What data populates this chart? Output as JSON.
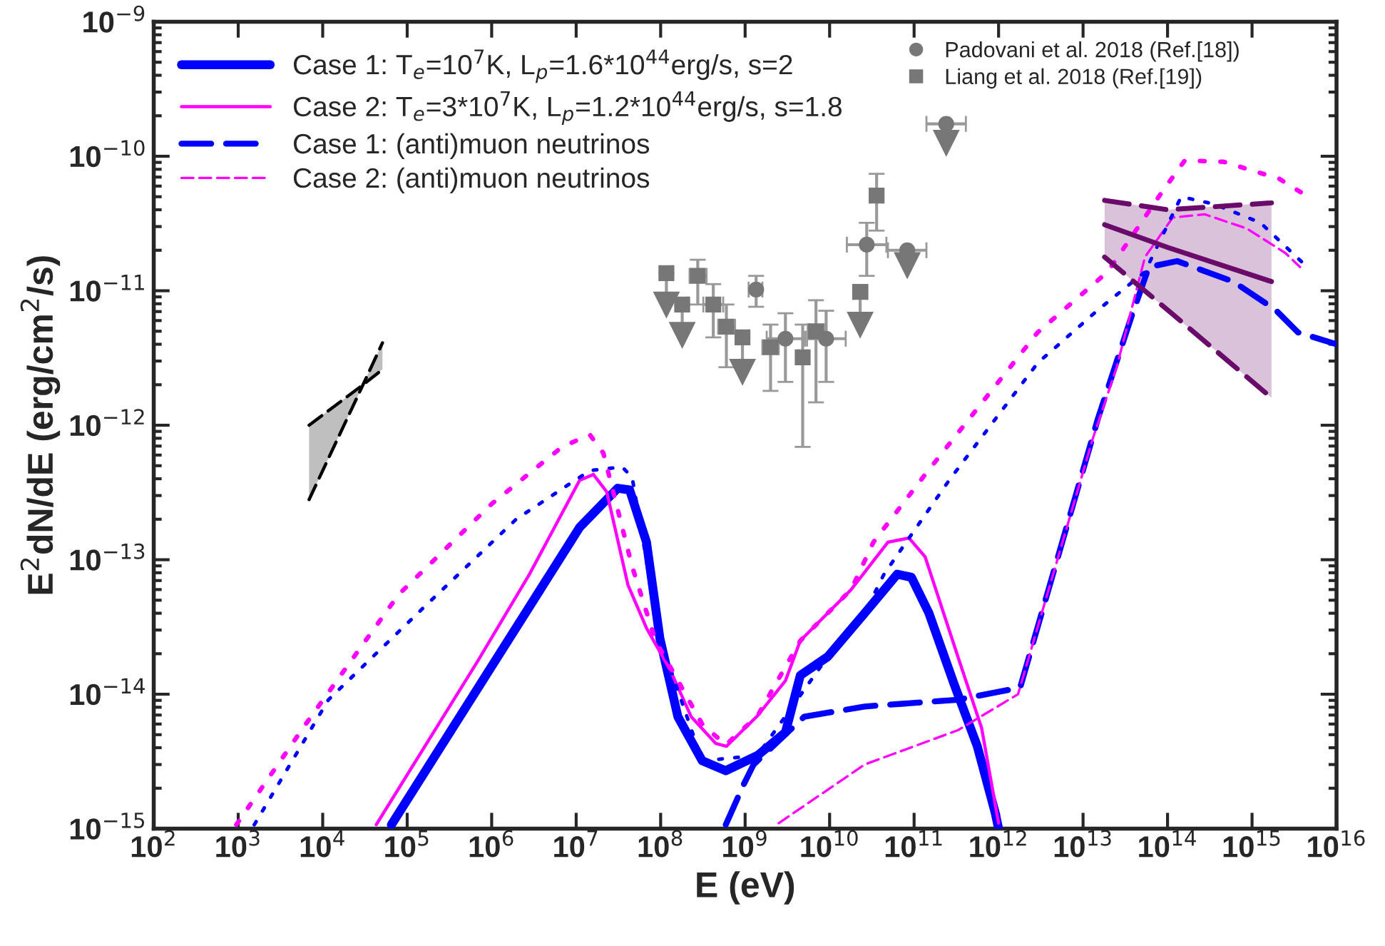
{
  "chart_data": {
    "type": "line",
    "xlabel": "E (eV)",
    "ylabel": "E$^{2}$dN/dE (erg/cm$^{2}$/s)",
    "log": "xy",
    "grid": false,
    "legend": "top left",
    "xlim": [
      100.0,
      1e+16
    ],
    "ylim": [
      1e-15,
      1e-09
    ],
    "xticks": [
      {
        "value": 100.0,
        "label": "10$^{2}$"
      },
      {
        "value": 1000.0,
        "label": "10$^{3}$"
      },
      {
        "value": 10000.0,
        "label": "10$^{4}$"
      },
      {
        "value": 100000.0,
        "label": "10$^{5}$"
      },
      {
        "value": 1000000.0,
        "label": "10$^{6}$"
      },
      {
        "value": 10000000.0,
        "label": "10$^{7}$"
      },
      {
        "value": 100000000.0,
        "label": "10$^{8}$"
      },
      {
        "value": 1000000000.0,
        "label": "10$^{9}$"
      },
      {
        "value": 10000000000.0,
        "label": "10$^{10}$"
      },
      {
        "value": 100000000000.0,
        "label": "10$^{11}$"
      },
      {
        "value": 1000000000000.0,
        "label": "10$^{12}$"
      },
      {
        "value": 10000000000000.0,
        "label": "10$^{13}$"
      },
      {
        "value": 100000000000000.0,
        "label": "10$^{14}$"
      },
      {
        "value": 1000000000000000.0,
        "label": "10$^{15}$"
      },
      {
        "value": 1e+16,
        "label": "10$^{16}$"
      }
    ],
    "yticks": [
      {
        "value": 1e-15,
        "label": "10$^{−15}$"
      },
      {
        "value": 1e-14,
        "label": "10$^{−14}$"
      },
      {
        "value": 1e-13,
        "label": "10$^{−13}$"
      },
      {
        "value": 1e-12,
        "label": "10$^{−12}$"
      },
      {
        "value": 1e-11,
        "label": "10$^{−11}$"
      },
      {
        "value": 1e-10,
        "label": "10$^{−10}$"
      },
      {
        "value": 1e-09,
        "label": "10$^{−9}$"
      }
    ],
    "series": [
      {
        "name": "Case 1: T$_{e}$=10$^{7}$K, L$_{p}$=1.6*10$^{44}$erg/s, s=2",
        "color": "#0000ff",
        "line_style": "solid",
        "marker": "none",
        "x": [
          65000.0,
          11000000.0,
          31000000.0,
          43000000.0,
          68000000.0,
          98000000.0,
          160000000.0,
          310000000.0,
          590000000.0,
          1400000000.0,
          3000000000.0,
          4500000000.0,
          9500000000.0,
          26000000000.0,
          63000000000.0,
          93000000000.0,
          150000000000.0,
          300000000000.0,
          560000000000.0,
          910000000000.0,
          1000000000000.0
        ],
        "values": [
          1.07e-15,
          1.74e-13,
          3.4e-13,
          3.3e-13,
          1.35e-13,
          2.6e-14,
          6.8e-15,
          3.2e-15,
          2.7e-15,
          3.5e-15,
          5.2e-15,
          1.38e-14,
          1.9e-14,
          4e-14,
          7.8e-14,
          7.4e-14,
          4e-14,
          1.17e-14,
          4.1e-15,
          1.32e-15,
          1e-15
        ]
      },
      {
        "name": "Case 2: T$_{e}$=3*10$^{7}$K, L$_{p}$=1.2*10$^{44}$erg/s, s=1.8",
        "color": "#ff00ff",
        "line_style": "solid",
        "marker": "none",
        "x": [
          43000.0,
          690000.0,
          2800000.0,
          11000000.0,
          16000000.0,
          23000000.0,
          41000000.0,
          68000000.0,
          130000000.0,
          230000000.0,
          450000000.0,
          600000000.0,
          1400000000.0,
          3000000000.0,
          4500000000.0,
          18000000000.0,
          49000000000.0,
          87000000000.0,
          135000000000.0,
          330000000000.0,
          630000000000.0,
          1000000000000.0
        ],
        "values": [
          1.07e-15,
          1.78e-14,
          7.8e-14,
          3.9e-13,
          4.3e-13,
          3.2e-13,
          6.5e-14,
          3.1e-14,
          1.51e-14,
          6.8e-15,
          4.3e-15,
          4.1e-15,
          6.9e-15,
          1.26e-14,
          2.5e-14,
          6e-14,
          1.35e-13,
          1.45e-13,
          1.05e-13,
          1.9e-14,
          5.6e-15,
          1.1e-15
        ]
      },
      {
        "name": "Case 1: (anti)muon neutrinos",
        "color": "#0000ff",
        "line_style": "dashed",
        "marker": "none",
        "x": [
          590000000.0,
          950000000.0,
          1260000000.0,
          5000000000.0,
          26000000000.0,
          330000000000.0,
          1800000000000.0,
          15000000000000.0,
          37000000000000.0,
          60000000000000.0,
          130000000000000.0,
          600000000000000.0,
          1900000000000000.0,
          3500000000000000.0,
          1e+16
        ],
        "values": [
          1.07e-15,
          2.1e-15,
          3e-15,
          6.8e-15,
          8.1e-15,
          9.1e-15,
          1.12e-14,
          1.12e-12,
          6.3e-12,
          1.5e-11,
          1.66e-11,
          1.17e-11,
          7.2e-12,
          4.9e-12,
          4e-12
        ]
      },
      {
        "name": "Case 2: (anti)muon neutrinos",
        "color": "#ff00ff",
        "line_style": "dashed",
        "marker": "none",
        "x": [
          2500000000.0,
          26000000000.0,
          330000000000.0,
          1700000000000.0,
          13000000000000.0,
          25000000000000.0,
          54000000000000.0,
          115000000000000.0,
          275000000000000.0,
          870000000000000.0,
          2500000000000000.0,
          3700000000000000.0
        ],
        "values": [
          1.1e-15,
          3e-15,
          5.4e-15,
          1e-14,
          7.9e-13,
          2.7e-12,
          1.78e-11,
          3.5e-11,
          3.7e-11,
          2.9e-11,
          1.9e-11,
          1.5e-11
        ]
      },
      {
        "color": "#0000ff",
        "line_style": "dotted",
        "marker": "none",
        "x": [
          1550.0,
          11700.0,
          150000.0,
          1950000.0,
          14500000.0,
          35000000.0,
          46000000.0,
          98000000.0,
          310000000.0,
          1400000000.0,
          9500000000.0,
          26000000000.0,
          44000000000.0,
          260000000000.0,
          2900000000000.0,
          15000000000000.0,
          54000000000000.0,
          145000000000000.0,
          360000000000000.0,
          1260000000000000.0,
          4500000000000000.0
        ],
        "values": [
          1.07e-15,
          9.1e-15,
          4.3e-14,
          2e-13,
          4.6e-13,
          4.9e-13,
          4.1e-13,
          2.6e-14,
          3.2e-15,
          3.5e-15,
          1.9e-14,
          4e-14,
          7.8e-14,
          3.9e-13,
          2.9e-12,
          7.2e-12,
          1.38e-11,
          5e-11,
          4.4e-11,
          3.2e-11,
          1.5e-11
        ]
      },
      {
        "color": "#ff00ff",
        "line_style": "dotted",
        "marker": "none",
        "x": [
          950.0,
          6300.0,
          79000.0,
          1000000.0,
          6800000.0,
          14500000.0,
          21000000.0,
          46000000.0,
          87000000.0,
          310000000.0,
          590000000.0,
          1400000000.0,
          4500000000.0,
          18000000000.0,
          33000000000.0,
          135000000000.0,
          2900000000000.0,
          19500000000000.0,
          89000000000000.0,
          160000000000000.0,
          460000000000000.0,
          2100000000000000.0,
          4600000000000000.0
        ],
        "values": [
          1.07e-15,
          6e-15,
          5.5e-14,
          2.6e-13,
          6.9e-13,
          8.5e-13,
          6.2e-13,
          8.9e-14,
          2.5e-14,
          6e-15,
          4.2e-15,
          6.9e-15,
          2.5e-14,
          6e-14,
          1.35e-13,
          4.3e-13,
          4.9e-12,
          1.38e-11,
          5.6e-11,
          9.3e-11,
          9.1e-11,
          6.8e-11,
          5e-11
        ]
      },
      {
        "color": "#6a0a6a",
        "line_style": "solid",
        "marker": "none",
        "x": [
          18000000000000.0,
          100000000000000.0,
          1700000000000000.0
        ],
        "values": [
          3.1e-11,
          2.1e-11,
          1.17e-11
        ],
        "lower": [
          1.78e-11,
          7.2e-12,
          1.6e-12
        ],
        "upper": [
          4.7e-11,
          4e-11,
          4.5e-11
        ]
      },
      {
        "color": "#6a0a6a",
        "line_style": "dashed",
        "marker": "none",
        "x": [
          18000000000000.0,
          100000000000000.0,
          1700000000000000.0
        ],
        "values": [
          4.7e-11,
          4e-11,
          4.5e-11
        ]
      },
      {
        "color": "#6a0a6a",
        "line_style": "dashed",
        "marker": "none",
        "x": [
          18000000000000.0,
          100000000000000.0,
          1700000000000000.0
        ],
        "values": [
          1.78e-11,
          7.2e-12,
          1.6e-12
        ]
      },
      {
        "color": "#000000",
        "line_style": "dashed",
        "marker": "none",
        "x": [
          6900.0,
          30000.0,
          51000.0
        ],
        "values": [
          1e-12,
          2e-12,
          2.6e-12
        ],
        "lower": [
          2.8e-13,
          2e-12,
          2.6e-12
        ],
        "upper": [
          1e-12,
          2e-12,
          4.1e-12
        ]
      },
      {
        "color": "#000000",
        "line_style": "dashed",
        "marker": "none",
        "x": [
          6900.0,
          30000.0,
          51000.0
        ],
        "values": [
          2.8e-13,
          2e-12,
          4.1e-12
        ]
      },
      {
        "type": "scatter",
        "name": "Padovani et al. 2018 (Ref.[18])",
        "color": "#777777",
        "marker": "circle",
        "x": [
          1350000000.0,
          3000000000.0,
          9100000000.0,
          27500000000.0,
          83000000000.0,
          240000000000.0
        ],
        "values": [
          1.02e-11,
          4.4e-12,
          4.4e-12,
          2.2e-11,
          2e-11,
          1.74e-10
        ],
        "errors": [
          [
            7.6e-12,
            1.29e-11
          ],
          [
            2.1e-12,
            6.8e-12
          ],
          [
            2.1e-12,
            7.1e-12
          ],
          [
            1.29e-11,
            3.2e-11
          ],
          null,
          null
        ],
        "xerrors": [
          [
            1100000000.0,
            1600000000.0
          ],
          [
            1800000000.0,
            5100000000.0
          ],
          [
            5400000000.0,
            15500000000.0
          ],
          [
            16000000000.0,
            47000000000.0
          ],
          [
            49000000000.0,
            140000000000.0
          ],
          [
            140000000000.0,
            410000000000.0
          ]
        ]
      },
      {
        "type": "scatter",
        "name": "Liang et al. 2018 (Ref.[19])",
        "color": "#777777",
        "marker": "square",
        "x": [
          117000000.0,
          180000000.0,
          275000000.0,
          420000000.0,
          600000000.0,
          930000000.0,
          2000000000.0,
          4800000000.0,
          6900000000.0,
          23000000000.0,
          36000000000.0
        ],
        "values": [
          1.35e-11,
          7.9e-12,
          1.29e-11,
          7.9e-12,
          5.4e-12,
          4.5e-12,
          3.8e-12,
          3.2e-12,
          5e-12,
          9.8e-12,
          5.1e-11
        ],
        "errors": [
          [
            9.3e-12,
            1.35e-11
          ],
          [
            5.5e-12,
            7.9e-12
          ],
          [
            7.9e-12,
            1.7e-11
          ],
          [
            4.5e-12,
            1.12e-11
          ],
          [
            2.7e-12,
            7.9e-12
          ],
          [
            2.9e-12,
            4.5e-12
          ],
          [
            1.8e-12,
            5.6e-12
          ],
          [
            6.9e-13,
            5.6e-12
          ],
          [
            1.48e-12,
            8.5e-12
          ],
          [
            6.6e-12,
            9.8e-12
          ],
          [
            2.8e-11,
            7.4e-11
          ]
        ],
        "xerrors": [
          [
            98000000.0,
            140000000.0
          ],
          [
            150000000.0,
            210000000.0
          ],
          [
            220000000.0,
            350000000.0
          ],
          [
            320000000.0,
            550000000.0
          ],
          [
            480000000.0,
            760000000.0
          ],
          [
            780000000.0,
            1100000000.0
          ],
          [
            1600000000.0,
            2500000000.0
          ],
          [
            4300000000.0,
            5400000000.0
          ],
          [
            5500000000.0,
            8700000000.0
          ],
          [
            19000000000.0,
            28000000000.0
          ],
          [
            31000000000.0,
            42000000000.0
          ]
        ]
      },
      {
        "type": "scatter",
        "color": "#777777",
        "marker": "triangle",
        "x": [
          117000000.0,
          180000000.0,
          930000000.0,
          23000000000.0,
          83000000000.0,
          240000000000.0
        ],
        "values": [
          7.9e-12,
          4.7e-12,
          2.5e-12,
          5.6e-12,
          1.55e-11,
          1.26e-10
        ]
      }
    ]
  }
}
